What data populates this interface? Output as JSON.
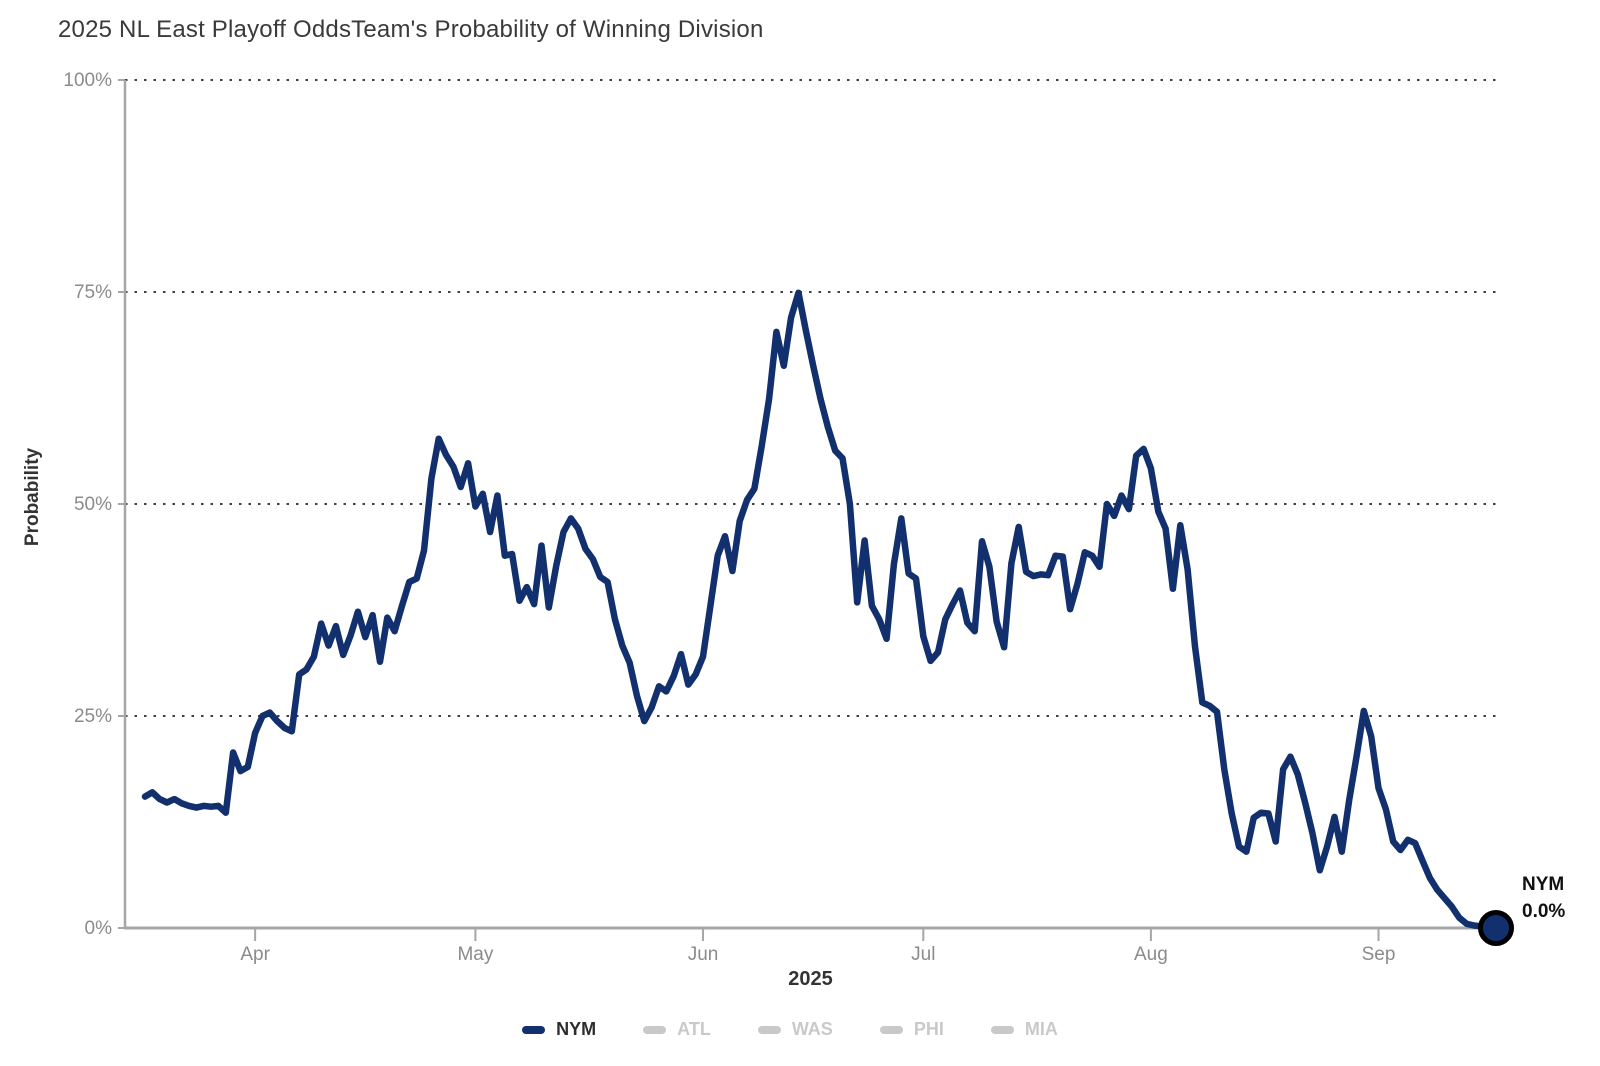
{
  "header": {
    "title": "2025 NL East Playoff OddsTeam's Probability of Winning Division"
  },
  "y_axis": {
    "title": "Probability",
    "ticks": [
      {
        "label": "0%",
        "value": 0
      },
      {
        "label": "25%",
        "value": 25
      },
      {
        "label": "50%",
        "value": 50
      },
      {
        "label": "75%",
        "value": 75
      },
      {
        "label": "100%",
        "value": 100
      }
    ]
  },
  "x_axis": {
    "title": "2025",
    "ticks": [
      {
        "label": "Apr",
        "date": "2025-04-01"
      },
      {
        "label": "May",
        "date": "2025-05-01"
      },
      {
        "label": "Jun",
        "date": "2025-06-01"
      },
      {
        "label": "Jul",
        "date": "2025-07-01"
      },
      {
        "label": "Aug",
        "date": "2025-08-01"
      },
      {
        "label": "Sep",
        "date": "2025-09-01"
      }
    ]
  },
  "end_marker": {
    "team": "NYM",
    "value_label": "0.0%"
  },
  "legend": {
    "items": [
      {
        "id": "nym",
        "label": "NYM",
        "swatch_color": "#12306e",
        "text_color": "#2d2d2d",
        "active": true
      },
      {
        "id": "atl",
        "label": "ATL",
        "swatch_color": "#c9c9c9",
        "text_color": "#c9c9c9",
        "active": false
      },
      {
        "id": "was",
        "label": "WAS",
        "swatch_color": "#c9c9c9",
        "text_color": "#c9c9c9",
        "active": false
      },
      {
        "id": "phi",
        "label": "PHI",
        "swatch_color": "#c9c9c9",
        "text_color": "#c9c9c9",
        "active": false
      },
      {
        "id": "mia",
        "label": "MIA",
        "swatch_color": "#c9c9c9",
        "text_color": "#c9c9c9",
        "active": false
      }
    ]
  },
  "colors": {
    "line": "#12306e",
    "marker_fill": "#12306e",
    "marker_ring": "#000000",
    "grid": "#3f3f3f",
    "axis": "#a6a6a6",
    "tick_label": "#8b8b8b",
    "end_label_text": "#111111"
  },
  "chart_data": {
    "type": "line",
    "title": "2025 NL East Playoff Odds",
    "subtitle": "Team's Probability of Winning Division",
    "xlabel": "2025",
    "ylabel": "Probability",
    "ylim": [
      0,
      100
    ],
    "grid": "horizontal dotted at 25/50/75/100",
    "legend_position": "bottom",
    "x_tick_labels": [
      "Apr",
      "May",
      "Jun",
      "Jul",
      "Aug",
      "Sep"
    ],
    "series": [
      {
        "name": "NYM",
        "color": "#12306e",
        "unit": "percent",
        "frequency": "daily",
        "start_date": "2025-03-17",
        "end_date": "2025-09-17",
        "end_value_label": "0.0%",
        "values": [
          15.5,
          16.0,
          15.2,
          14.8,
          15.2,
          14.7,
          14.4,
          14.2,
          14.4,
          14.3,
          14.4,
          13.6,
          20.7,
          18.5,
          19.0,
          23.0,
          25.0,
          25.4,
          24.4,
          23.6,
          23.2,
          29.9,
          30.5,
          32.0,
          35.9,
          33.3,
          35.6,
          32.2,
          34.5,
          37.3,
          34.3,
          36.9,
          31.4,
          36.6,
          35.0,
          38.0,
          40.8,
          41.2,
          44.5,
          53.0,
          57.7,
          55.8,
          54.4,
          52.0,
          54.8,
          49.7,
          51.2,
          46.7,
          51.0,
          43.9,
          44.1,
          38.6,
          40.2,
          38.2,
          45.1,
          37.8,
          42.7,
          46.7,
          48.3,
          47.1,
          44.7,
          43.5,
          41.4,
          40.8,
          36.4,
          33.3,
          31.3,
          27.4,
          24.4,
          26.0,
          28.5,
          27.9,
          29.7,
          32.3,
          28.7,
          29.9,
          32.0,
          38.0,
          43.9,
          46.2,
          42.1,
          48.0,
          50.5,
          51.8,
          56.9,
          62.4,
          70.3,
          66.3,
          72.0,
          74.9,
          70.5,
          66.3,
          62.4,
          59.1,
          56.3,
          55.4,
          50.0,
          38.4,
          45.7,
          38.0,
          36.4,
          34.1,
          42.9,
          48.3,
          41.8,
          41.2,
          34.4,
          31.5,
          32.5,
          36.4,
          38.2,
          39.8,
          36.0,
          35.0,
          45.6,
          42.6,
          36.1,
          33.1,
          43.0,
          47.3,
          42.0,
          41.5,
          41.7,
          41.6,
          43.9,
          43.8,
          37.6,
          40.6,
          44.3,
          43.9,
          42.6,
          50.0,
          48.6,
          51.0,
          49.4,
          55.7,
          56.5,
          54.2,
          49.1,
          47.1,
          40.0,
          47.5,
          42.3,
          33.2,
          26.6,
          26.2,
          25.5,
          18.7,
          13.5,
          9.6,
          9.0,
          13.0,
          13.6,
          13.5,
          10.2,
          18.7,
          20.2,
          18.1,
          14.8,
          11.2,
          6.8,
          9.6,
          13.1,
          9.0,
          15.1,
          20.2,
          25.6,
          22.6,
          16.5,
          14.0,
          10.2,
          9.2,
          10.4,
          10.0,
          7.9,
          5.9,
          4.5,
          3.5,
          2.5,
          1.2,
          0.5,
          0.3,
          0.2,
          0.1,
          0.0
        ]
      },
      {
        "name": "ATL",
        "color": "#c9c9c9",
        "active": false,
        "values": []
      },
      {
        "name": "WAS",
        "color": "#c9c9c9",
        "active": false,
        "values": []
      },
      {
        "name": "PHI",
        "color": "#c9c9c9",
        "active": false,
        "values": []
      },
      {
        "name": "MIA",
        "color": "#c9c9c9",
        "active": false,
        "values": []
      }
    ]
  }
}
